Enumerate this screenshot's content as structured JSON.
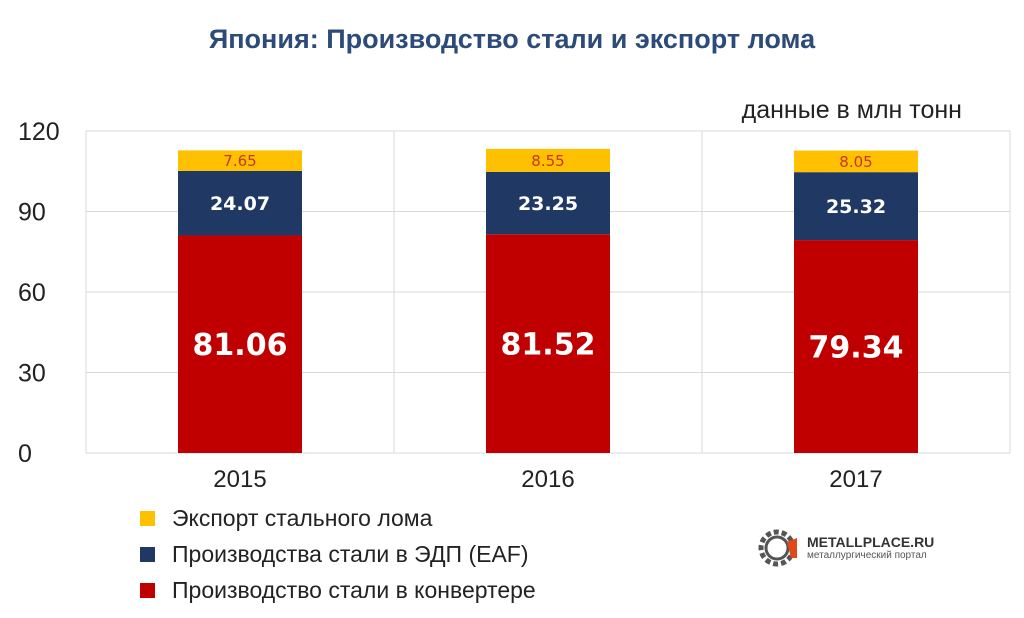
{
  "title": "Япония: Производство стали и экспорт лома",
  "unit_note": "данные в млн тонн",
  "chart_data": {
    "type": "bar",
    "stacked": true,
    "categories": [
      "2015",
      "2016",
      "2017"
    ],
    "series": [
      {
        "name": "Производство стали в конвертере",
        "color": "#c00000",
        "values": [
          81.06,
          81.52,
          79.34
        ],
        "value_labels": [
          "81.06",
          "81.52",
          "79.34"
        ]
      },
      {
        "name": "Производства стали в ЭДП (EAF)",
        "color": "#1f3864",
        "values": [
          24.07,
          23.25,
          25.32
        ],
        "value_labels": [
          "24.07",
          "23.25",
          "25.32"
        ]
      },
      {
        "name": "Экспорт стального лома",
        "color": "#ffc000",
        "values": [
          7.65,
          8.55,
          8.05
        ],
        "value_labels": [
          "7.65",
          "8.55",
          "8.05"
        ]
      }
    ],
    "ylim": [
      0,
      120
    ],
    "yticks": [
      0,
      30,
      60,
      90,
      120
    ],
    "ytick_labels": [
      "0",
      "30",
      "60",
      "90",
      "120"
    ],
    "grid": true,
    "legend_position": "bottom-left"
  },
  "legend": [
    {
      "label": "Экспорт стального лома",
      "color": "#ffc000"
    },
    {
      "label": "Производства стали в ЭДП (EAF)",
      "color": "#1f3864"
    },
    {
      "label": "Производство стали в конвертере",
      "color": "#c00000"
    }
  ],
  "logo": {
    "name": "METALLPLACE.RU",
    "tagline": "металлургический портал",
    "icon": "gear-icon"
  }
}
